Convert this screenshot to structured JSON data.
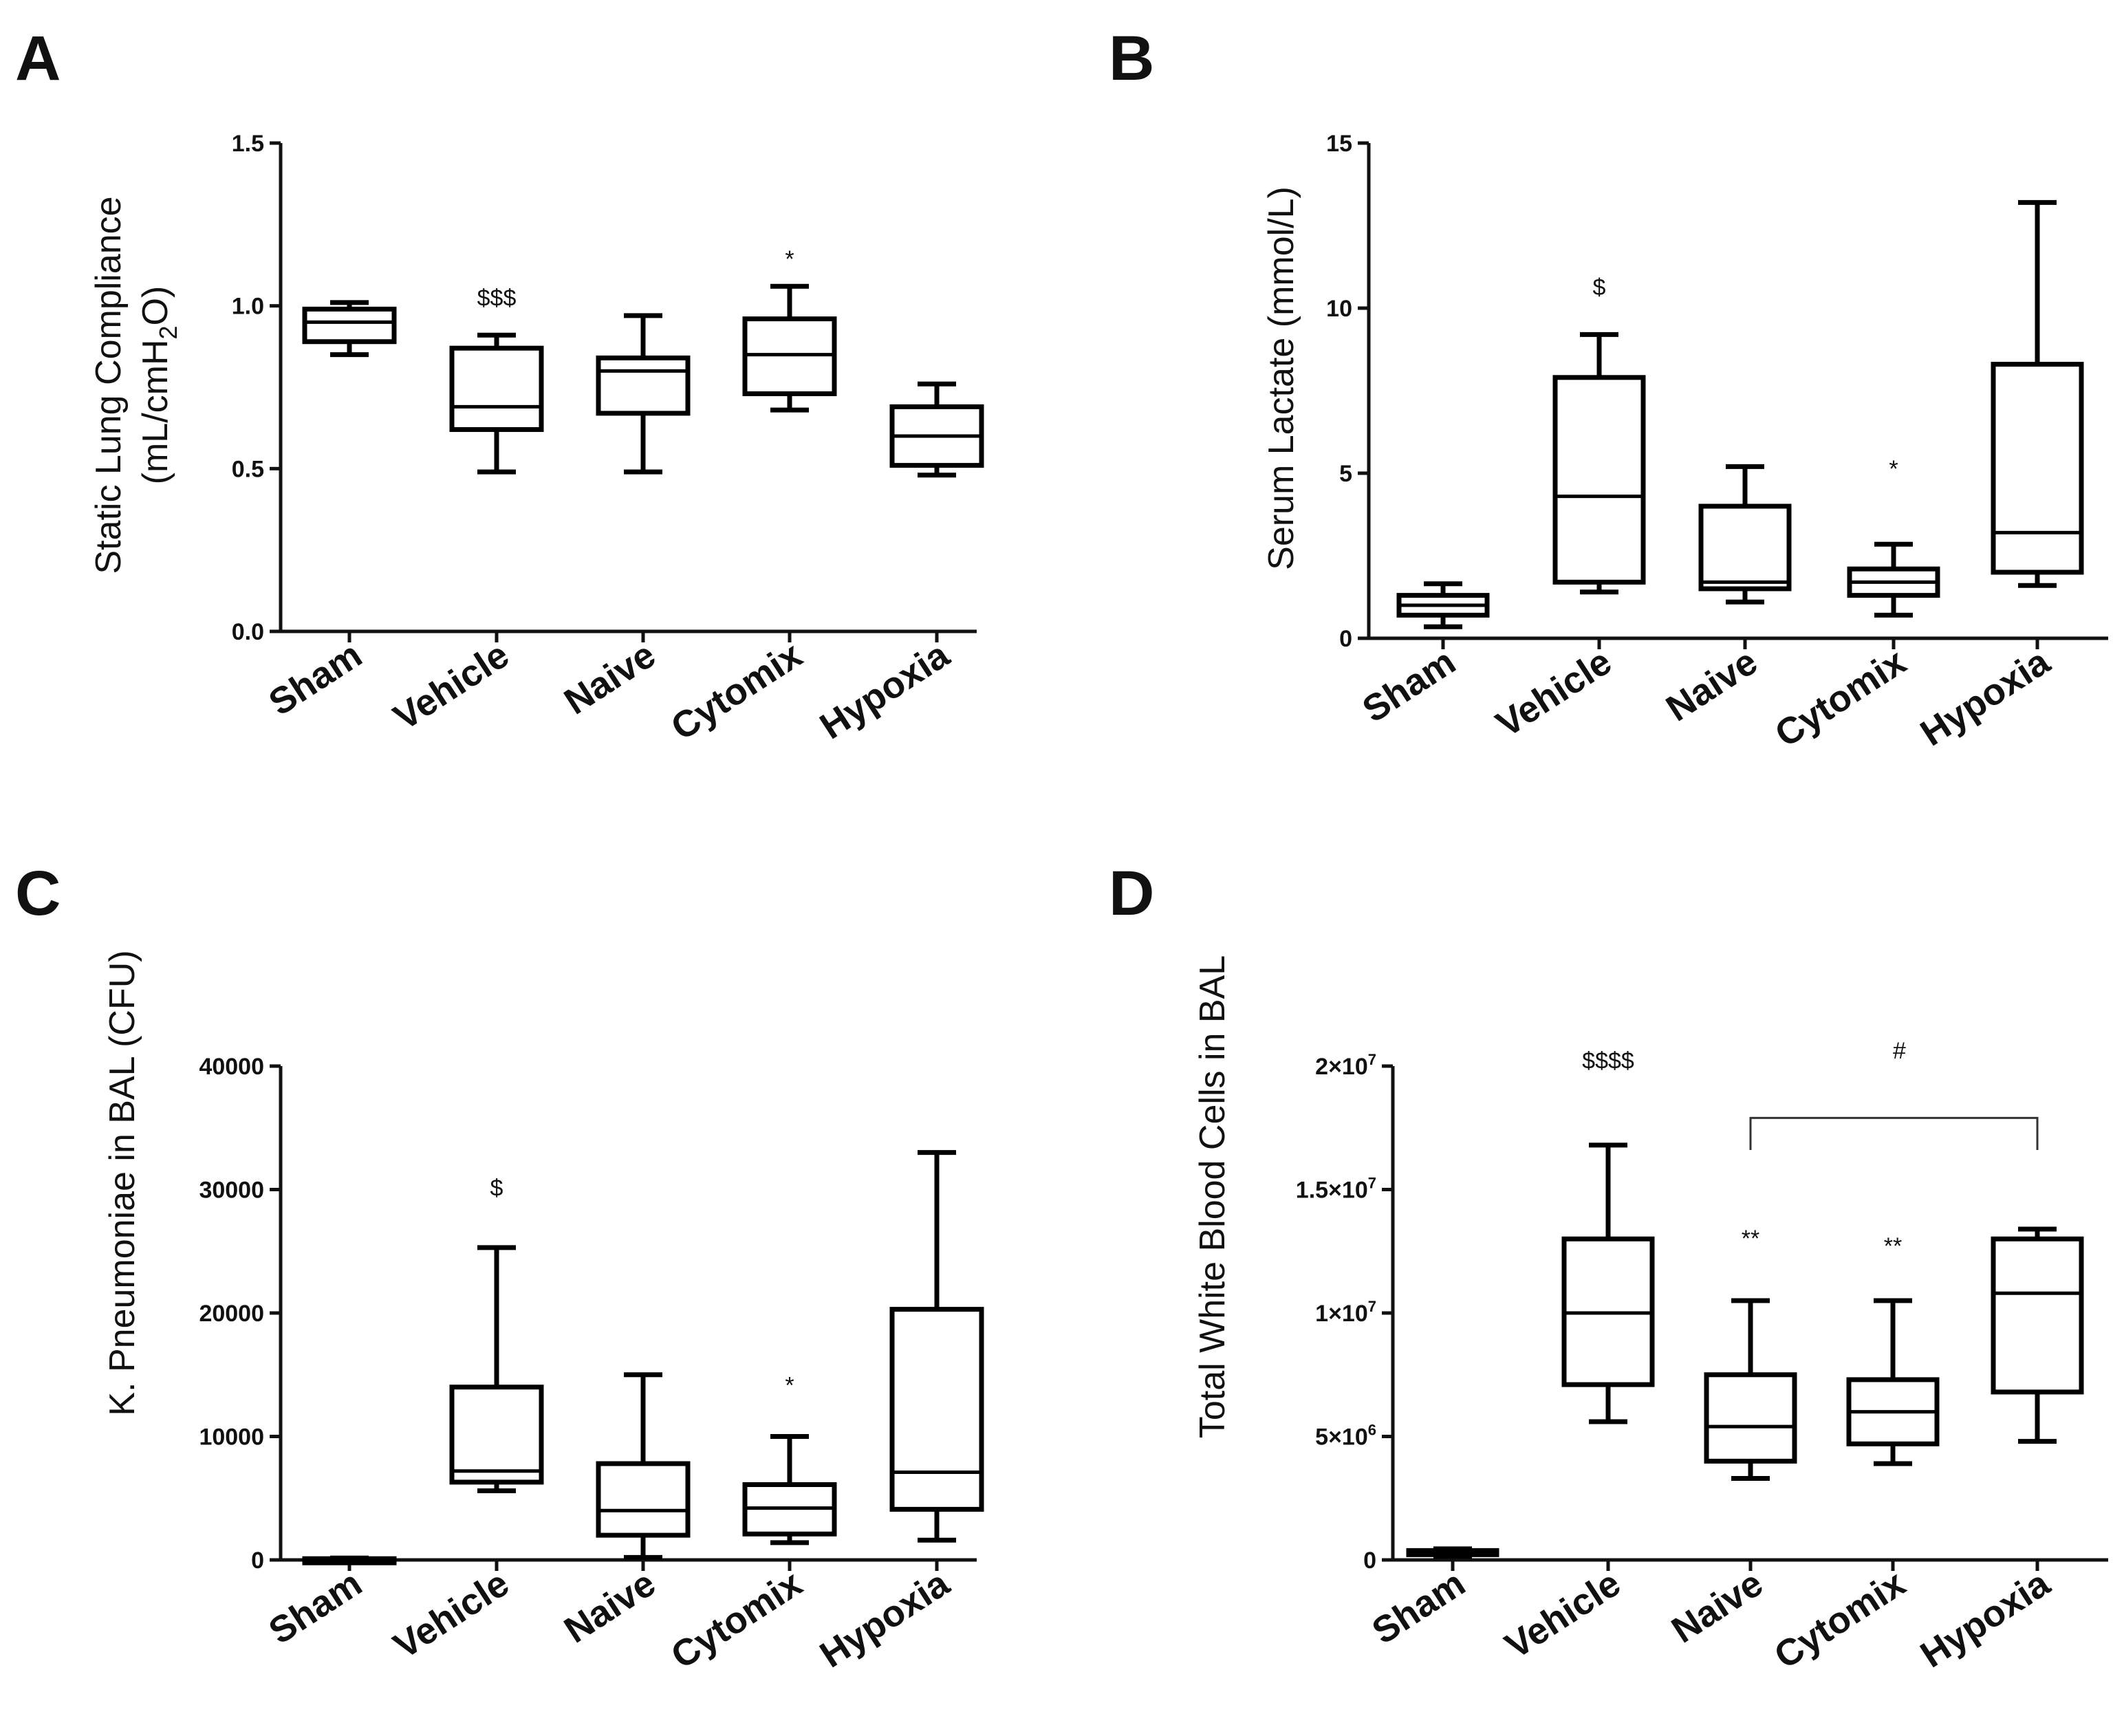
{
  "chart_data": [
    {
      "panel": "A",
      "type": "box",
      "ylabel_line1": "Static Lung Compliance",
      "ylabel_line2_pre": "(mL/cmH",
      "ylabel_line2_sub": "2",
      "ylabel_line2_post": "O)",
      "ylim": [
        0,
        1.5
      ],
      "yticks": [
        {
          "value": 0.0,
          "label": "0.0"
        },
        {
          "value": 0.5,
          "label": "0.5"
        },
        {
          "value": 1.0,
          "label": "1.0"
        },
        {
          "value": 1.5,
          "label": "1.5"
        }
      ],
      "categories": [
        "Sham",
        "Vehicle",
        "Naive",
        "Cytomix",
        "Hypoxia"
      ],
      "boxes": [
        {
          "min": 0.85,
          "q1": 0.89,
          "median": 0.95,
          "q3": 0.99,
          "max": 1.01
        },
        {
          "min": 0.49,
          "q1": 0.62,
          "median": 0.69,
          "q3": 0.87,
          "max": 0.91
        },
        {
          "min": 0.49,
          "q1": 0.67,
          "median": 0.8,
          "q3": 0.84,
          "max": 0.97
        },
        {
          "min": 0.68,
          "q1": 0.73,
          "median": 0.85,
          "q3": 0.96,
          "max": 1.06
        },
        {
          "min": 0.48,
          "q1": 0.51,
          "median": 0.6,
          "q3": 0.69,
          "max": 0.76
        }
      ],
      "annotations": [
        {
          "category": "Vehicle",
          "text": "$$$",
          "value": 1.0
        },
        {
          "category": "Cytomix",
          "text": "*",
          "value": 1.12
        }
      ]
    },
    {
      "panel": "B",
      "type": "box",
      "ylabel": "Serum Lactate (mmol/L)",
      "ylim": [
        0,
        15
      ],
      "yticks": [
        {
          "value": 0,
          "label": "0"
        },
        {
          "value": 5,
          "label": "5"
        },
        {
          "value": 10,
          "label": "10"
        },
        {
          "value": 15,
          "label": "15"
        }
      ],
      "categories": [
        "Sham",
        "Vehicle",
        "Naive",
        "Cytomix",
        "Hypoxia"
      ],
      "boxes": [
        {
          "min": 0.35,
          "q1": 0.7,
          "median": 1.0,
          "q3": 1.3,
          "max": 1.65
        },
        {
          "min": 1.4,
          "q1": 1.7,
          "median": 4.3,
          "q3": 7.9,
          "max": 9.2
        },
        {
          "min": 1.1,
          "q1": 1.5,
          "median": 1.7,
          "q3": 4.0,
          "max": 5.2
        },
        {
          "min": 0.7,
          "q1": 1.3,
          "median": 1.7,
          "q3": 2.1,
          "max": 2.85
        },
        {
          "min": 1.6,
          "q1": 2.0,
          "median": 3.2,
          "q3": 8.3,
          "max": 13.2
        }
      ],
      "annotations": [
        {
          "category": "Vehicle",
          "text": "$",
          "value": 10.4
        },
        {
          "category": "Cytomix",
          "text": "*",
          "value": 4.9
        }
      ]
    },
    {
      "panel": "C",
      "type": "box",
      "ylabel": "K. Pneumoniae in BAL (CFU)",
      "ylim": [
        0,
        40000
      ],
      "yticks": [
        {
          "value": 0,
          "label": "0"
        },
        {
          "value": 10000,
          "label": "10000"
        },
        {
          "value": 20000,
          "label": "20000"
        },
        {
          "value": 30000,
          "label": "30000"
        },
        {
          "value": 40000,
          "label": "40000"
        }
      ],
      "categories": [
        "Sham",
        "Vehicle",
        "Naive",
        "Cytomix",
        "Hypoxia"
      ],
      "boxes": [
        {
          "min": 0,
          "q1": 30,
          "median": 60,
          "q3": 100,
          "max": 150
        },
        {
          "min": 5600,
          "q1": 6300,
          "median": 7200,
          "q3": 14000,
          "max": 25300
        },
        {
          "min": 200,
          "q1": 2000,
          "median": 4000,
          "q3": 7800,
          "max": 15000
        },
        {
          "min": 1400,
          "q1": 2100,
          "median": 4200,
          "q3": 6100,
          "max": 10000
        },
        {
          "min": 1600,
          "q1": 4100,
          "median": 7100,
          "q3": 20300,
          "max": 33000
        }
      ],
      "annotations": [
        {
          "category": "Vehicle",
          "text": "$",
          "value": 29500
        },
        {
          "category": "Cytomix",
          "text": "*",
          "value": 13500
        }
      ]
    },
    {
      "panel": "D",
      "type": "box",
      "ylabel": "Total White Blood Cells in BAL",
      "ylim": [
        0,
        20000000
      ],
      "yticks": [
        {
          "value": 0,
          "label": "0",
          "exp": ""
        },
        {
          "value": 5000000,
          "label": "5×10",
          "exp": "6"
        },
        {
          "value": 10000000,
          "label": "1×10",
          "exp": "7"
        },
        {
          "value": 15000000,
          "label": "1.5×10",
          "exp": "7"
        },
        {
          "value": 20000000,
          "label": "2×10",
          "exp": "7"
        }
      ],
      "categories": [
        "Sham",
        "Vehicle",
        "Naive",
        "Cytomix",
        "Hypoxia"
      ],
      "boxes": [
        {
          "min": 150000,
          "q1": 250000,
          "median": 320000,
          "q3": 380000,
          "max": 450000
        },
        {
          "min": 5600000,
          "q1": 7100000,
          "median": 10000000,
          "q3": 13000000,
          "max": 16800000
        },
        {
          "min": 3300000,
          "q1": 4000000,
          "median": 5400000,
          "q3": 7500000,
          "max": 10500000
        },
        {
          "min": 3900000,
          "q1": 4700000,
          "median": 6000000,
          "q3": 7300000,
          "max": 10500000
        },
        {
          "min": 4800000,
          "q1": 6800000,
          "median": 10800000,
          "q3": 13000000,
          "max": 13400000
        }
      ],
      "annotations": [
        {
          "category": "Vehicle",
          "text": "$$$$",
          "value": 19900000
        },
        {
          "category": "Naive",
          "text": "**",
          "value": 12700000
        },
        {
          "category": "Cytomix",
          "text": "**",
          "value": 12400000
        }
      ],
      "bracket": {
        "from": "Naive",
        "to": "Hypoxia",
        "value": 17900000,
        "drop_to": 16600000,
        "text": "#",
        "text_value": 20300000
      }
    }
  ]
}
